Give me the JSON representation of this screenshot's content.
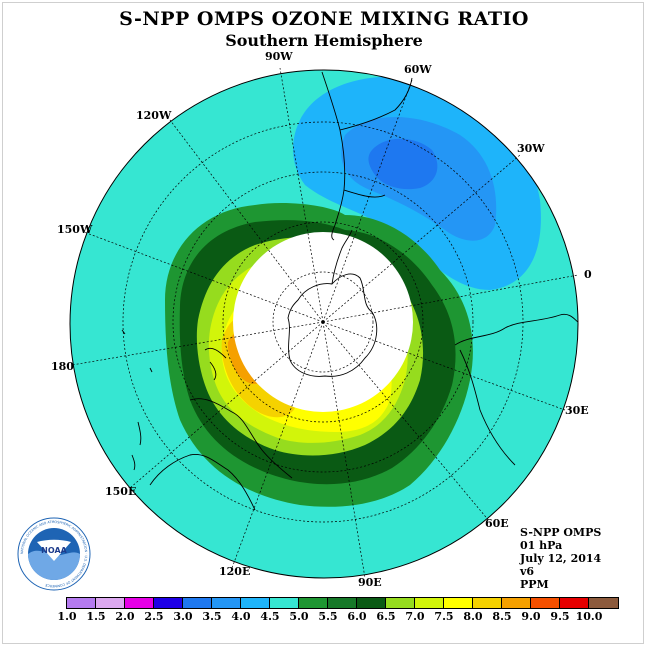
{
  "title": "S-NPP OMPS OZONE MIXING RATIO",
  "subtitle": "Southern Hemisphere",
  "longitude_labels": [
    "90W",
    "60W",
    "30W",
    "0",
    "30E",
    "60E",
    "90E",
    "120E",
    "150E",
    "180",
    "150W",
    "120W"
  ],
  "info": {
    "instrument": "S-NPP OMPS",
    "level": "01 hPa",
    "date": "July 12, 2014",
    "version": "v6",
    "units": "PPM"
  },
  "logo": {
    "text": "NOAA",
    "ring_text": "NATIONAL OCEANIC AND ATMOSPHERIC ADMINISTRATION · U.S. DEPARTMENT OF COMMERCE"
  },
  "colorbar": {
    "ticks": [
      "1.0",
      "1.5",
      "2.0",
      "2.5",
      "3.0",
      "3.5",
      "4.0",
      "4.5",
      "5.0",
      "5.5",
      "6.0",
      "6.5",
      "7.0",
      "7.5",
      "8.0",
      "8.5",
      "9.0",
      "9.5",
      "10.0"
    ],
    "colors": [
      "#b57bf0",
      "#dca8f0",
      "#e600e6",
      "#1e00e6",
      "#1e78f0",
      "#2496f5",
      "#1eb4fa",
      "#36e6d2",
      "#1e9632",
      "#167828",
      "#0a5a14",
      "#96dc1e",
      "#d2f50a",
      "#ffff00",
      "#f5d200",
      "#f5a000",
      "#f55000",
      "#e60000",
      "#8c5a3c"
    ]
  },
  "field_colors": {
    "ocean_bg": "#36e6d2",
    "low_1": "#1eb4fa",
    "low_2": "#2496f5",
    "low_3": "#1e78f0",
    "band_5_5": "#1e9632",
    "band_6_0": "#0a5a14",
    "band_6_5": "#96dc1e",
    "band_7_0": "#d2f50a",
    "band_7_5": "#ffff00",
    "band_8_0": "#f5d200",
    "band_8_5": "#f5a000"
  }
}
